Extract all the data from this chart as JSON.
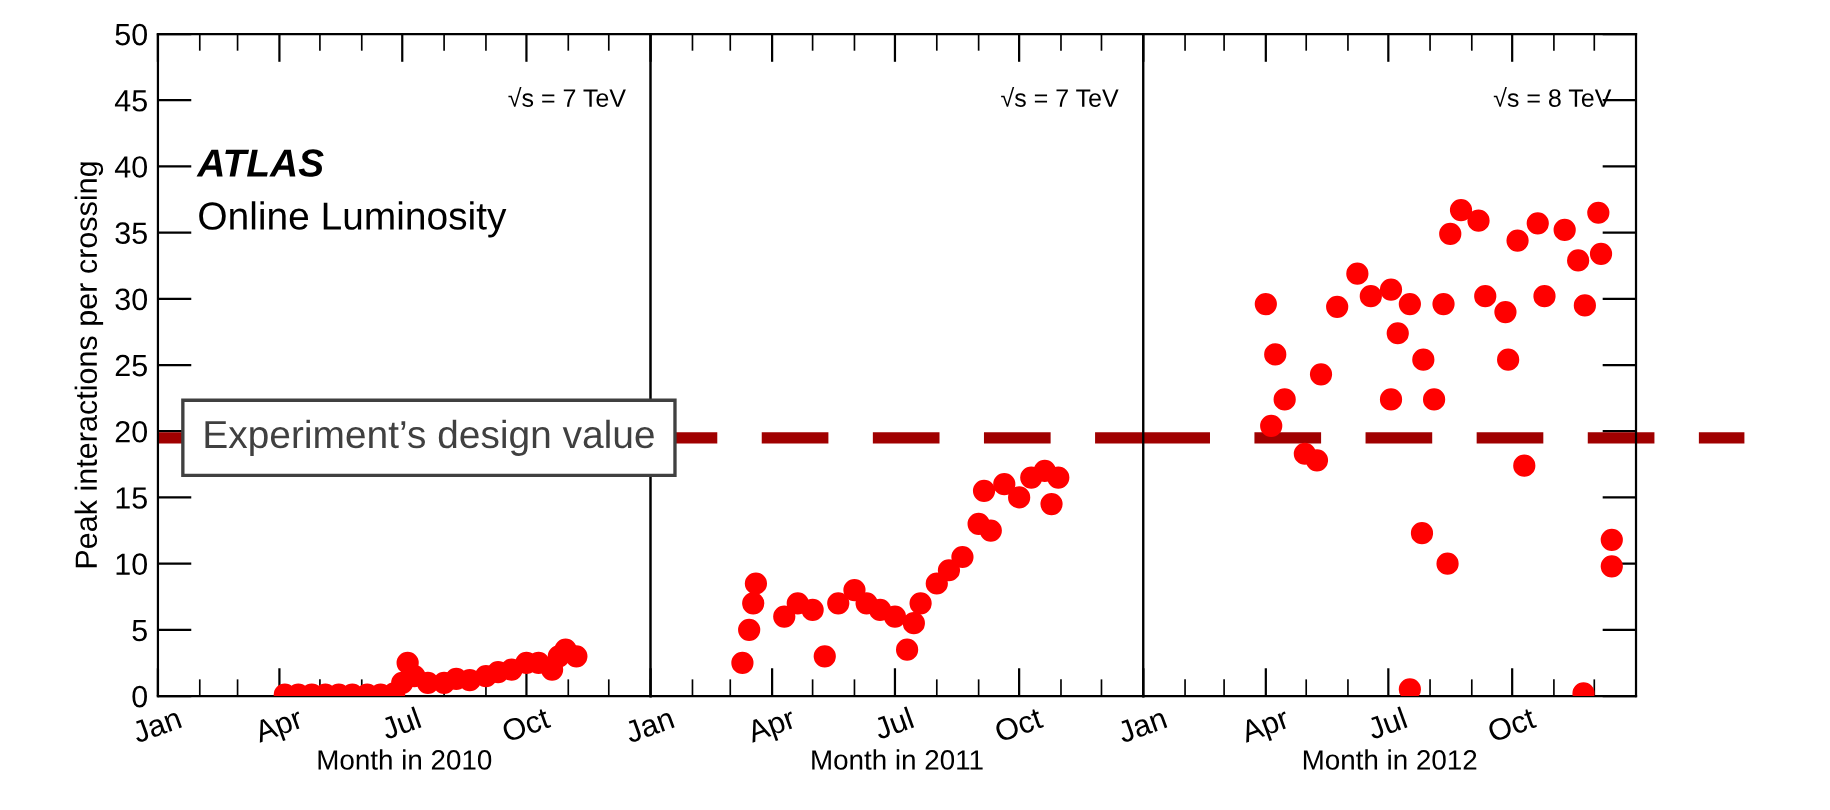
{
  "chart_data": [
    {
      "type": "scatter",
      "ylabel": "Peak interactions per crossing",
      "xlabel": "Month in 2010",
      "marker": "circle",
      "legend": false,
      "grid": false,
      "xlim": [
        "2010-01-01",
        "2011-01-01"
      ],
      "ylim": [
        0,
        50
      ],
      "yticks": [
        0,
        5,
        10,
        15,
        20,
        25,
        30,
        35,
        40,
        45,
        50
      ],
      "xticks": [
        {
          "value": "2010-01-01",
          "label": "Jan"
        },
        {
          "value": "2010-04-01",
          "label": "Apr"
        },
        {
          "value": "2010-07-01",
          "label": "Jul"
        },
        {
          "value": "2010-10-01",
          "label": "Oct"
        }
      ],
      "annotations": [
        "√s = 7 TeV",
        "ATLAS",
        "Online Luminosity"
      ],
      "ref_lines": [
        {
          "axis": "y",
          "value": 19.5,
          "label": "Experiment’s design value",
          "color": "#a00000",
          "line_style": "dashed"
        }
      ],
      "series": [
        {
          "color": "#ff0000",
          "x": [
            "2010-04-05",
            "2010-04-15",
            "2010-04-25",
            "2010-05-05",
            "2010-05-15",
            "2010-05-25",
            "2010-06-05",
            "2010-06-15",
            "2010-06-25",
            "2010-07-01",
            "2010-07-05",
            "2010-07-10",
            "2010-07-20",
            "2010-08-01",
            "2010-08-10",
            "2010-08-20",
            "2010-09-01",
            "2010-09-10",
            "2010-09-20",
            "2010-10-01",
            "2010-10-10",
            "2010-10-20",
            "2010-10-25",
            "2010-10-30",
            "2010-11-07"
          ],
          "values": [
            0.1,
            0.1,
            0.1,
            0.1,
            0.1,
            0.1,
            0.1,
            0.1,
            0.2,
            1,
            2.5,
            1.5,
            1,
            1,
            1.3,
            1.2,
            1.5,
            1.8,
            2,
            2.5,
            2.5,
            2,
            3,
            3.5,
            3
          ]
        }
      ]
    },
    {
      "type": "scatter",
      "xlabel": "Month in 2011",
      "marker": "circle",
      "legend": false,
      "grid": false,
      "tick_labels": "x",
      "xlim": [
        "2011-01-01",
        "2012-01-01"
      ],
      "ylim": [
        0,
        50
      ],
      "yticks": [
        0,
        5,
        10,
        15,
        20,
        25,
        30,
        35,
        40,
        45,
        50
      ],
      "xticks": [
        {
          "value": "2011-01-01",
          "label": "Jan"
        },
        {
          "value": "2011-04-01",
          "label": "Apr"
        },
        {
          "value": "2011-07-01",
          "label": "Jul"
        },
        {
          "value": "2011-10-01",
          "label": "Oct"
        }
      ],
      "annotations": [
        "√s = 7 TeV"
      ],
      "ref_lines": [
        {
          "axis": "y",
          "value": 19.5,
          "color": "#a00000",
          "line_style": "dashed"
        }
      ],
      "series": [
        {
          "color": "#ff0000",
          "x": [
            "2011-03-10",
            "2011-03-15",
            "2011-03-18",
            "2011-03-20",
            "2011-04-10",
            "2011-04-20",
            "2011-05-01",
            "2011-05-10",
            "2011-05-20",
            "2011-06-01",
            "2011-06-10",
            "2011-06-20",
            "2011-07-01",
            "2011-07-10",
            "2011-07-15",
            "2011-07-20",
            "2011-08-01",
            "2011-08-10",
            "2011-08-20",
            "2011-09-01",
            "2011-09-05",
            "2011-09-10",
            "2011-09-20",
            "2011-10-01",
            "2011-10-10",
            "2011-10-20",
            "2011-10-25",
            "2011-10-30"
          ],
          "values": [
            2.5,
            5,
            7,
            8.5,
            6,
            7,
            6.5,
            3,
            7,
            8,
            7,
            6.5,
            6,
            3.5,
            5.5,
            7,
            8.5,
            9.5,
            10.5,
            13,
            15.5,
            12.5,
            16,
            15,
            16.5,
            17,
            14.5,
            16.5
          ]
        }
      ]
    },
    {
      "type": "scatter",
      "xlabel": "Month in 2012",
      "marker": "circle",
      "legend": false,
      "grid": false,
      "tick_labels": "x",
      "xlim": [
        "2012-01-01",
        "2013-01-01"
      ],
      "ylim": [
        0,
        50
      ],
      "yticks": [
        0,
        5,
        10,
        15,
        20,
        25,
        30,
        35,
        40,
        45,
        50
      ],
      "xticks": [
        {
          "value": "2012-01-01",
          "label": "Jan"
        },
        {
          "value": "2012-04-01",
          "label": "Apr"
        },
        {
          "value": "2012-07-01",
          "label": "Jul"
        },
        {
          "value": "2012-10-01",
          "label": "Oct"
        }
      ],
      "annotations": [
        "√s = 8 TeV"
      ],
      "ref_lines": [
        {
          "axis": "y",
          "value": 19.5,
          "color": "#a00000",
          "line_style": "dashed"
        }
      ],
      "series": [
        {
          "color": "#ff0000",
          "x": [
            "2012-04-01",
            "2012-04-08",
            "2012-04-15",
            "2012-04-05",
            "2012-04-30",
            "2012-05-09",
            "2012-05-12",
            "2012-05-24",
            "2012-06-08",
            "2012-06-18",
            "2012-07-03",
            "2012-07-03",
            "2012-07-08",
            "2012-07-17",
            "2012-07-27",
            "2012-08-04",
            "2012-08-11",
            "2012-08-16",
            "2012-08-24",
            "2012-09-06",
            "2012-09-11",
            "2012-09-26",
            "2012-09-28",
            "2012-10-05",
            "2012-10-20",
            "2012-10-25",
            "2012-11-09",
            "2012-11-19",
            "2012-11-24",
            "2012-12-04",
            "2012-12-06",
            "2012-12-14",
            "2012-12-14",
            "2012-07-17",
            "2012-07-26",
            "2012-08-14",
            "2012-10-10",
            "2012-11-23"
          ],
          "values": [
            29.6,
            25.8,
            22.4,
            20.4,
            18.3,
            17.8,
            24.3,
            29.4,
            31.9,
            30.2,
            30.7,
            22.4,
            27.4,
            29.6,
            25.4,
            22.4,
            29.6,
            34.9,
            36.7,
            35.9,
            30.2,
            29,
            25.4,
            34.4,
            35.7,
            30.2,
            35.2,
            32.9,
            29.5,
            36.5,
            33.4,
            11.8,
            9.8,
            0.5,
            12.3,
            10,
            17.4,
            0.2
          ]
        }
      ]
    }
  ]
}
